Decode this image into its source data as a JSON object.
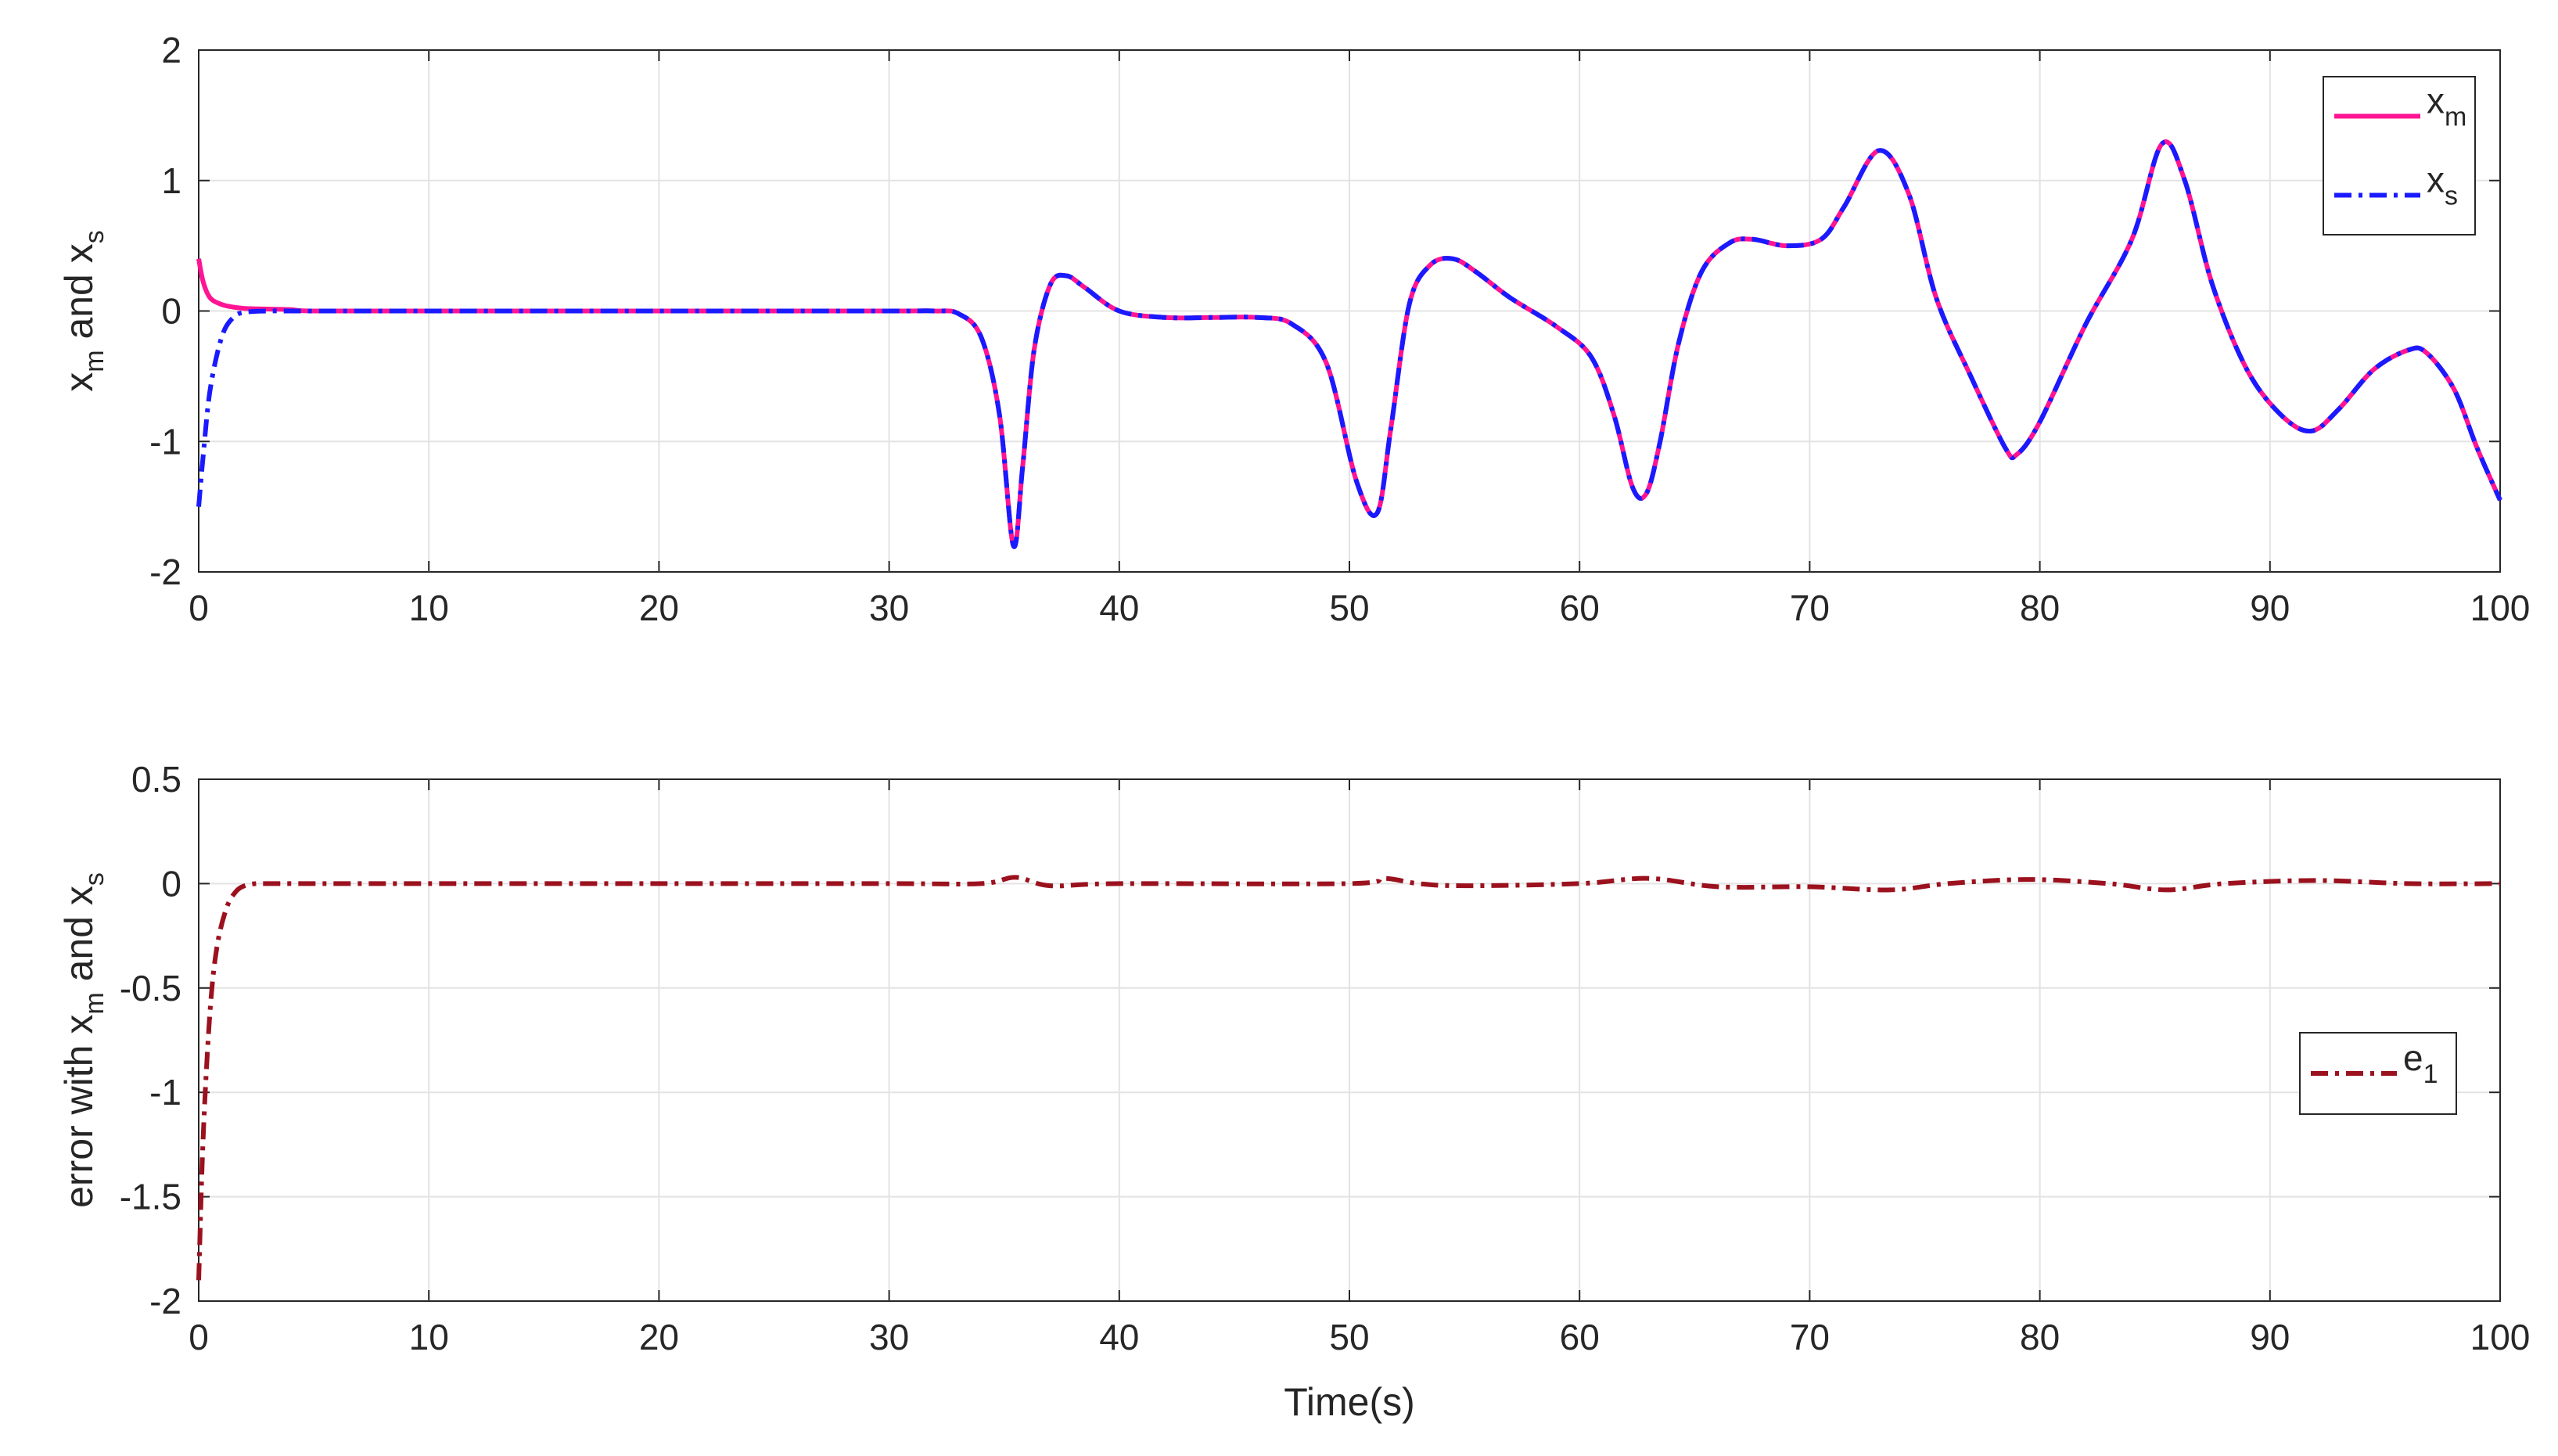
{
  "chart_data": [
    {
      "type": "line",
      "xlabel": "",
      "ylabel": {
        "main": "x",
        "sub": "m",
        "mid": " and x",
        "sub2": "s"
      },
      "xlim": [
        0,
        100
      ],
      "ylim": [
        -2,
        2
      ],
      "xticks": [
        0,
        10,
        20,
        30,
        40,
        50,
        60,
        70,
        80,
        90,
        100
      ],
      "xtick_labels": [
        "0",
        "10",
        "20",
        "30",
        "40",
        "50",
        "60",
        "70",
        "80",
        "90",
        "100"
      ],
      "yticks": [
        2,
        1,
        0,
        -1,
        -2
      ],
      "ytick_labels": [
        "2",
        "1",
        "0",
        "-1",
        "-2"
      ],
      "grid": true,
      "legend_position": "top-right",
      "series": [
        {
          "name": "x",
          "name_sub": "m",
          "color": "#ff1493",
          "style": "solid",
          "x": [
            0,
            0.2,
            0.5,
            1,
            1.5,
            2,
            3,
            4,
            5,
            10,
            20,
            30,
            32,
            33,
            34,
            34.8,
            35.4,
            35.8,
            36.3,
            37,
            37.7,
            38.5,
            40,
            42,
            44,
            46,
            47.5,
            49,
            50.3,
            51.2,
            51.8,
            52.6,
            53.5,
            54.5,
            55.5,
            57,
            59,
            60.5,
            61.5,
            62.3,
            62.9,
            63.5,
            64.3,
            65.3,
            66.5,
            67.5,
            69,
            70.5,
            71.5,
            73,
            74.3,
            75.5,
            77,
            78.5,
            79,
            80,
            82,
            84,
            85.3,
            86.3,
            87.5,
            89,
            90.5,
            91.8,
            93,
            94.5,
            96,
            96.8,
            98,
            99,
            100
          ],
          "values": [
            0.4,
            0.22,
            0.1,
            0.05,
            0.03,
            0.02,
            0.015,
            0.01,
            0.0,
            0.0,
            0.0,
            0.0,
            0.0,
            -0.02,
            -0.2,
            -0.8,
            -1.8,
            -1.2,
            -0.3,
            0.2,
            0.27,
            0.18,
            0.0,
            -0.05,
            -0.05,
            -0.05,
            -0.1,
            -0.4,
            -1.3,
            -1.55,
            -0.9,
            0.05,
            0.35,
            0.4,
            0.3,
            0.1,
            -0.12,
            -0.35,
            -0.8,
            -1.35,
            -1.4,
            -1.0,
            -0.25,
            0.3,
            0.52,
            0.55,
            0.5,
            0.55,
            0.8,
            1.23,
            0.9,
            0.1,
            -0.5,
            -1.05,
            -1.1,
            -0.85,
            -0.1,
            0.55,
            1.28,
            1.0,
            0.2,
            -0.45,
            -0.8,
            -0.92,
            -0.75,
            -0.45,
            -0.3,
            -0.32,
            -0.6,
            -1.05,
            -1.45
          ]
        },
        {
          "name": "x",
          "name_sub": "s",
          "color": "#1a1aff",
          "style": "dashdot",
          "x": [
            0,
            0.2,
            0.5,
            1,
            1.5,
            2,
            3,
            4,
            5,
            10,
            20,
            30,
            32,
            33,
            34,
            34.8,
            35.4,
            35.8,
            36.3,
            37,
            37.7,
            38.5,
            40,
            42,
            44,
            46,
            47.5,
            49,
            50.3,
            51.2,
            51.8,
            52.6,
            53.5,
            54.5,
            55.5,
            57,
            59,
            60.5,
            61.5,
            62.3,
            62.9,
            63.5,
            64.3,
            65.3,
            66.5,
            67.5,
            69,
            70.5,
            71.5,
            73,
            74.3,
            75.5,
            77,
            78.5,
            79,
            80,
            82,
            84,
            85.3,
            86.3,
            87.5,
            89,
            90.5,
            91.8,
            93,
            94.5,
            96,
            96.8,
            98,
            99,
            100
          ],
          "values": [
            -1.5,
            -1.1,
            -0.6,
            -0.2,
            -0.05,
            -0.01,
            0.0,
            0.0,
            0.0,
            0.0,
            0.0,
            0.0,
            0.0,
            -0.02,
            -0.2,
            -0.8,
            -1.8,
            -1.2,
            -0.3,
            0.2,
            0.27,
            0.18,
            0.0,
            -0.05,
            -0.05,
            -0.05,
            -0.1,
            -0.4,
            -1.3,
            -1.55,
            -0.9,
            0.05,
            0.35,
            0.4,
            0.3,
            0.1,
            -0.12,
            -0.35,
            -0.8,
            -1.35,
            -1.4,
            -1.0,
            -0.25,
            0.3,
            0.52,
            0.55,
            0.5,
            0.55,
            0.8,
            1.23,
            0.9,
            0.1,
            -0.5,
            -1.05,
            -1.1,
            -0.85,
            -0.1,
            0.55,
            1.28,
            1.0,
            0.2,
            -0.45,
            -0.8,
            -0.92,
            -0.75,
            -0.45,
            -0.3,
            -0.32,
            -0.6,
            -1.05,
            -1.45
          ]
        }
      ]
    },
    {
      "type": "line",
      "xlabel": "Time(s)",
      "ylabel": {
        "main": "error with x",
        "sub": "m",
        "mid": " and x",
        "sub2": "s"
      },
      "xlim": [
        0,
        100
      ],
      "ylim": [
        -2,
        0.5
      ],
      "xticks": [
        0,
        10,
        20,
        30,
        40,
        50,
        60,
        70,
        80,
        90,
        100
      ],
      "xtick_labels": [
        "0",
        "10",
        "20",
        "30",
        "40",
        "50",
        "60",
        "70",
        "80",
        "90",
        "100"
      ],
      "yticks": [
        0.5,
        0,
        -0.5,
        -1,
        -1.5,
        -2
      ],
      "ytick_labels": [
        "0.5",
        "0",
        "-0.5",
        "-1",
        "-1.5",
        "-2"
      ],
      "grid": true,
      "legend_position": "right",
      "series": [
        {
          "name": "e",
          "name_sub": "1",
          "color": "#9b111e",
          "style": "dashdot",
          "x": [
            0,
            0.2,
            0.5,
            0.8,
            1.2,
            1.6,
            2,
            2.5,
            3,
            5,
            10,
            20,
            30,
            34,
            35.5,
            37,
            40,
            50,
            51.5,
            53,
            55,
            60,
            63,
            66,
            70,
            73.5,
            76,
            79.5,
            83,
            85.5,
            88,
            92,
            96,
            100
          ],
          "values": [
            -1.9,
            -1.2,
            -0.6,
            -0.3,
            -0.12,
            -0.04,
            -0.01,
            0.0,
            0.0,
            0.0,
            0.0,
            0.0,
            0.0,
            0.0,
            0.03,
            -0.01,
            0.0,
            0.0,
            0.025,
            0.0,
            -0.01,
            0.0,
            0.025,
            -0.015,
            -0.015,
            -0.03,
            0.0,
            0.02,
            0.0,
            -0.03,
            0.0,
            0.015,
            0.0,
            0.0
          ]
        }
      ]
    }
  ]
}
